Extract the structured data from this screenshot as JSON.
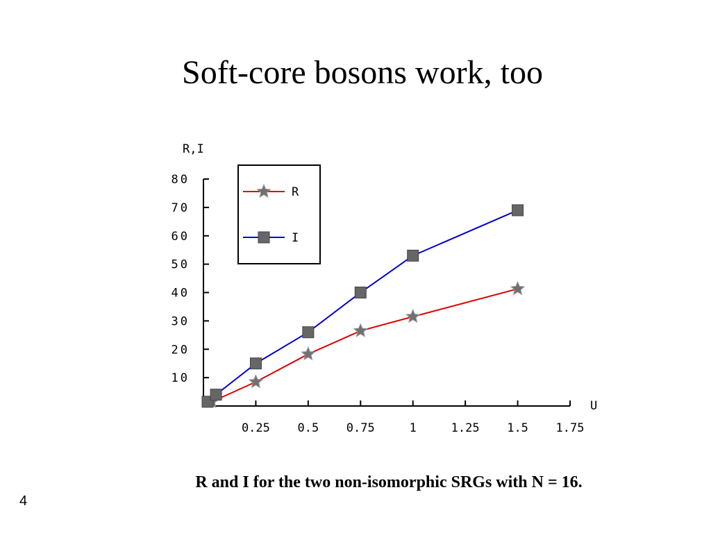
{
  "slide": {
    "title": "Soft-core bosons work, too",
    "caption": "R and I for the two non-isomorphic SRGs with N = 16.",
    "page_number": "4"
  },
  "chart_data": {
    "type": "line",
    "x_label": "U",
    "y_label": "R,I",
    "xlim": [
      0,
      1.75
    ],
    "xticks": [
      0.25,
      0.5,
      0.75,
      1,
      1.25,
      1.5,
      1.75
    ],
    "ylim": [
      0,
      80
    ],
    "yticks": [
      10,
      20,
      30,
      40,
      50,
      60,
      70,
      80
    ],
    "legend": "upper left",
    "series": [
      {
        "name": "R",
        "color": "#e00000",
        "marker": "star",
        "x": [
          0.04,
          0.25,
          0.5,
          0.75,
          1,
          1.5
        ],
        "values": [
          1.5,
          8.5,
          18.3,
          26.5,
          31.5,
          41.3
        ]
      },
      {
        "name": "I",
        "color": "#0000d0",
        "marker": "square",
        "x": [
          0.02,
          0.06,
          0.25,
          0.5,
          0.75,
          1,
          1.5
        ],
        "values": [
          1.5,
          4,
          15,
          26,
          40,
          53,
          69
        ]
      }
    ]
  }
}
